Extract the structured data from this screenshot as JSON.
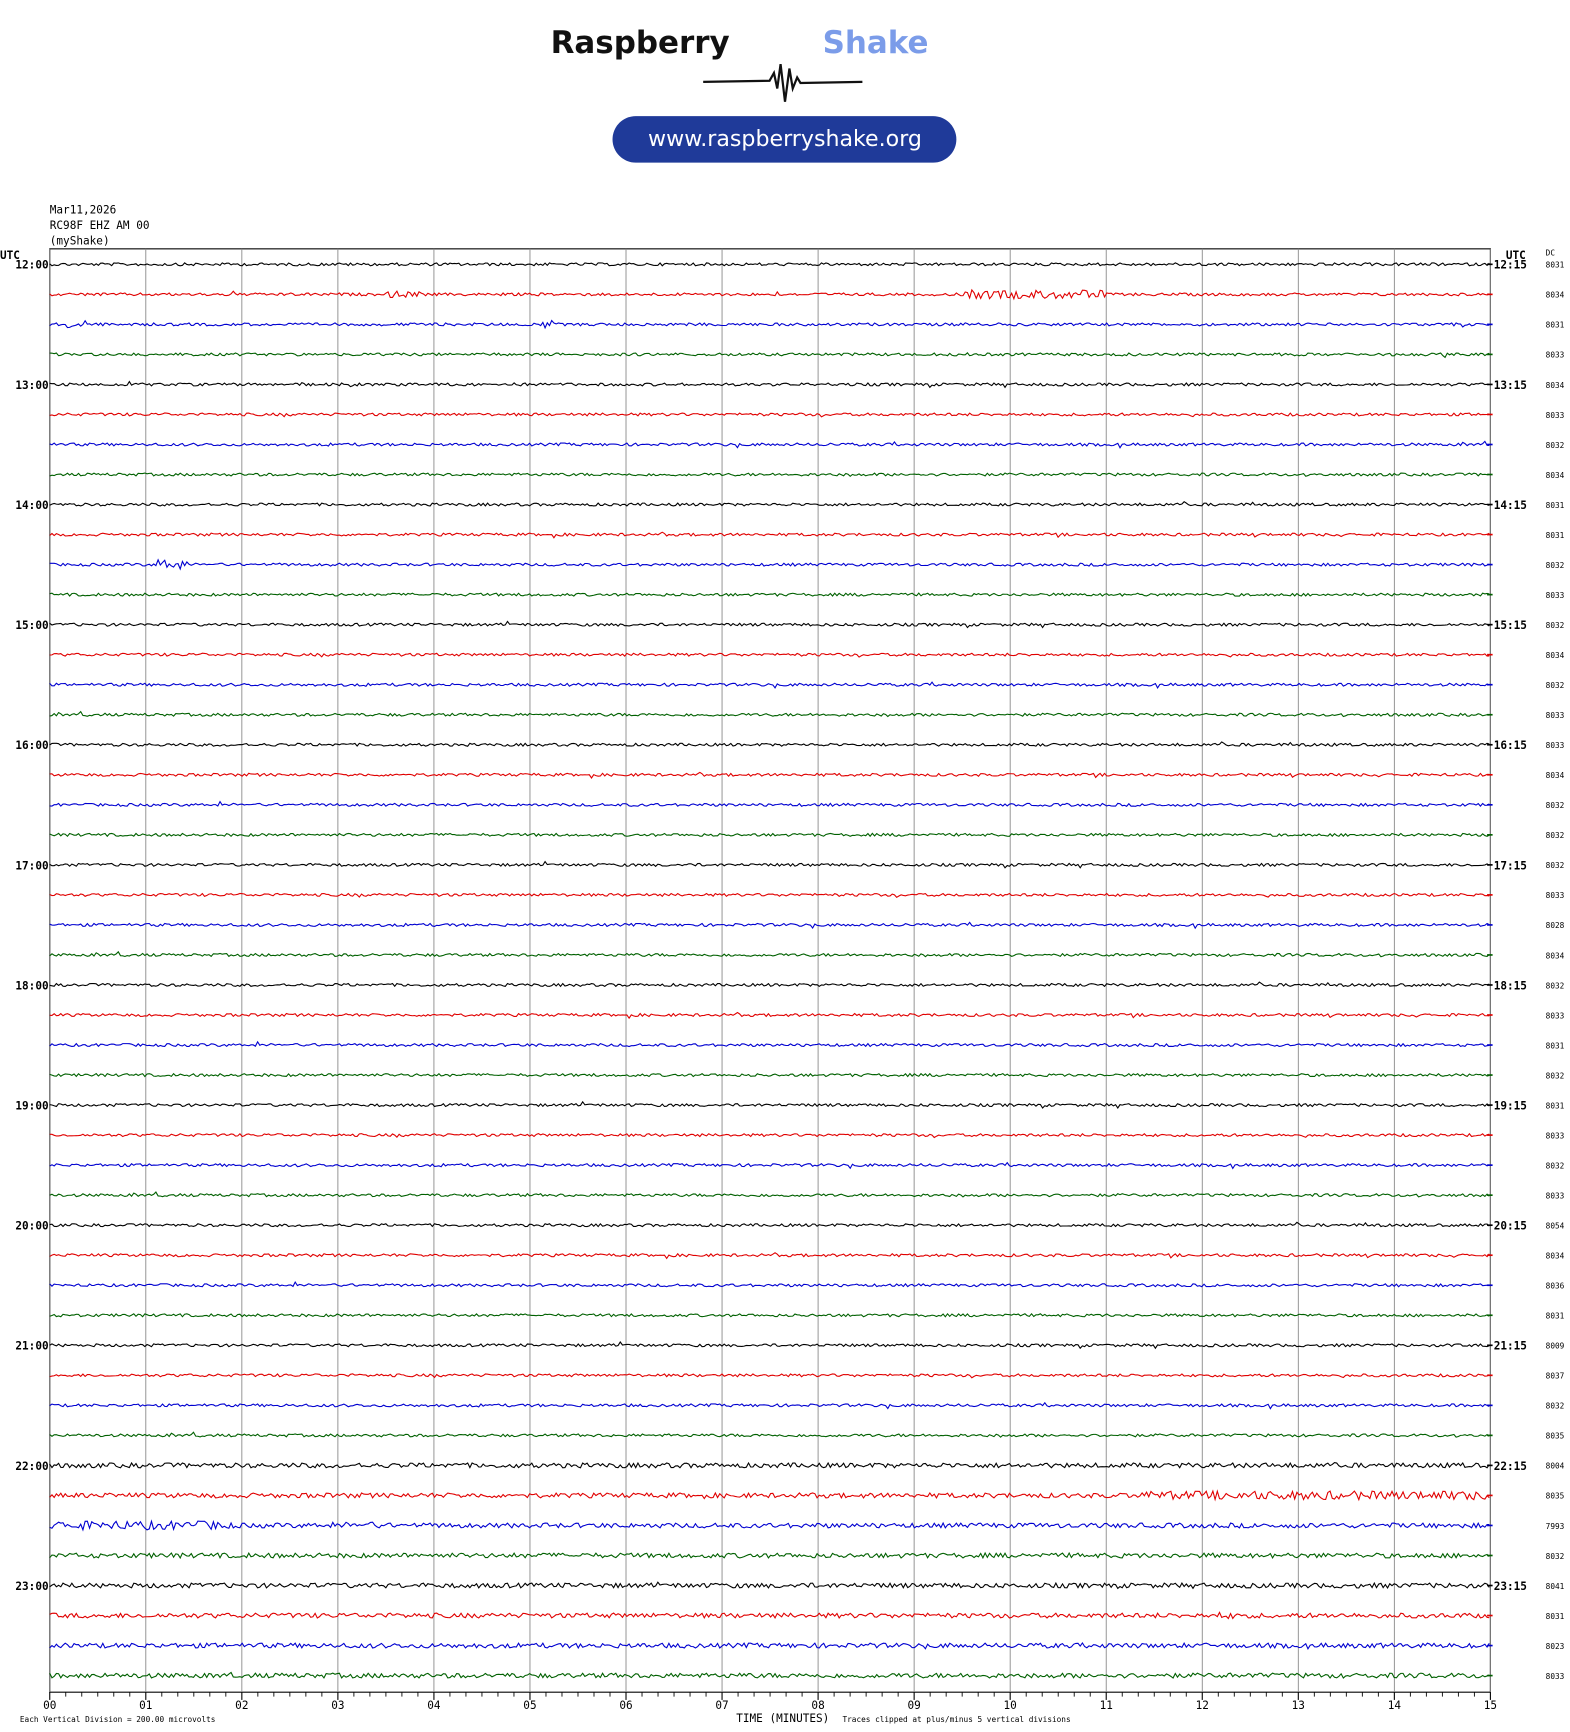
{
  "logo": {
    "name_first": "Raspberry",
    "name_second": "Shake",
    "url": "www.raspberryshake.org"
  },
  "header": {
    "date": "Mar11,2026",
    "station": "RC98F EHZ AM 00",
    "source": "(myShake)"
  },
  "left_axis_label": "UTC",
  "right_axis_label": "UTC",
  "dc_label": "DC",
  "left_times": [
    "12:00",
    "13:00",
    "14:00",
    "15:00",
    "16:00",
    "17:00",
    "18:00",
    "19:00",
    "20:00",
    "21:00",
    "22:00",
    "23:00"
  ],
  "right_times": [
    "12:15",
    "13:15",
    "14:15",
    "15:15",
    "16:15",
    "17:15",
    "18:15",
    "19:15",
    "20:15",
    "21:15",
    "22:15",
    "23:15"
  ],
  "dc_values": [
    8031,
    8034,
    8031,
    8033,
    8034,
    8033,
    8032,
    8034,
    8031,
    8031,
    8032,
    8033,
    8032,
    8034,
    8032,
    8033,
    8033,
    8034,
    8032,
    8032,
    8032,
    8033,
    8028,
    8034,
    8032,
    8033,
    8031,
    8032,
    8031,
    8033,
    8032,
    8033,
    8054,
    8034,
    8036,
    8031,
    8009,
    8037,
    8032,
    8035,
    8004,
    8035,
    7993,
    8032,
    8041,
    8031,
    8023,
    8033
  ],
  "x_ticks": [
    "00",
    "01",
    "02",
    "03",
    "04",
    "05",
    "06",
    "07",
    "08",
    "09",
    "10",
    "11",
    "12",
    "13",
    "14",
    "15"
  ],
  "x_axis_label": "TIME (MINUTES)",
  "footer": {
    "division": "Each Vertical Division =  200.00 microvolts",
    "clip": "Traces clipped at plus/minus 5 vertical divisions"
  },
  "trace_colors": [
    "#000000",
    "#e00000",
    "#0000d0",
    "#006000"
  ]
}
